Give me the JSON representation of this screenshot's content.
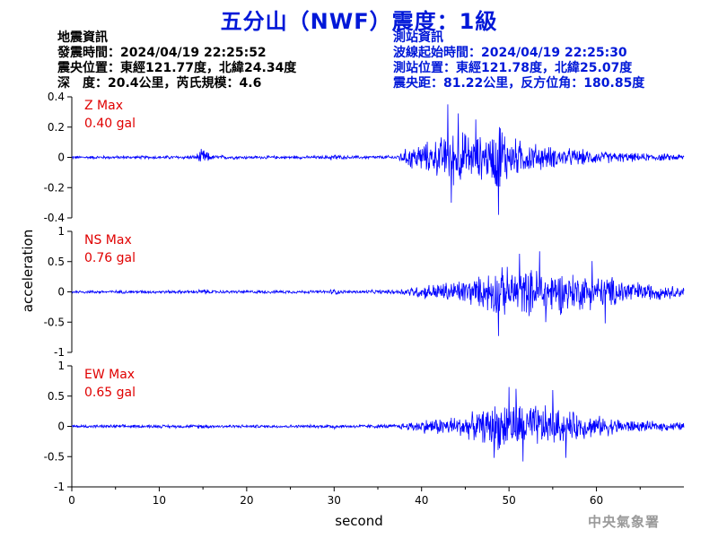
{
  "header": {
    "title": "五分山（NWF）震度：1級",
    "eq_info": {
      "heading": "地震資訊",
      "origin_time": "發震時間：2024/04/19 22:25:52",
      "epicenter": "震央位置：東經121.77度，北緯24.34度",
      "depth_magnitude": "深　度：20.4公里，芮氏規模：4.6"
    },
    "station_info": {
      "heading": "測站資訊",
      "wave_start": "波線起始時間：2024/04/19 22:25:30",
      "station_location": "測站位置：東經121.78度，北緯25.07度",
      "distance_azimuth": "震央距：81.22公里，反方位角：180.85度"
    }
  },
  "agency": "中央氣象署",
  "chart_data": {
    "type": "line",
    "xlabel": "second",
    "ylabel": "acceleration",
    "xlim": [
      0,
      70
    ],
    "xticks": [
      0,
      10,
      20,
      30,
      40,
      50,
      60
    ],
    "line_color": "#0000ff",
    "max_label_color": "#e00000",
    "panels": [
      {
        "component": "Z",
        "max_label": "Z Max",
        "max_value": "0.40 gal",
        "ylim": [
          -0.4,
          0.4
        ],
        "yticks": [
          -0.4,
          -0.2,
          0,
          0.2,
          0.4
        ],
        "ytick_labels": [
          "-0.4",
          "-0.2",
          "0",
          "0.2",
          "0.4"
        ],
        "envelope": {
          "t": [
            0,
            10,
            14,
            15,
            16,
            20,
            29,
            30,
            31,
            37,
            39,
            41,
            43,
            44,
            46,
            48,
            49,
            50,
            52,
            55,
            60,
            65,
            70
          ],
          "amp": [
            0.012,
            0.012,
            0.015,
            0.07,
            0.018,
            0.012,
            0.012,
            0.03,
            0.012,
            0.015,
            0.1,
            0.12,
            0.18,
            0.22,
            0.16,
            0.18,
            0.3,
            0.16,
            0.12,
            0.08,
            0.05,
            0.03,
            0.025
          ]
        },
        "peaks": [
          [
            43.0,
            0.35
          ],
          [
            43.4,
            -0.3
          ],
          [
            48.8,
            -0.38
          ],
          [
            48.9,
            0.2
          ],
          [
            46.2,
            0.25
          ],
          [
            44.2,
            0.29
          ]
        ]
      },
      {
        "component": "NS",
        "max_label": "NS Max",
        "max_value": "0.76 gal",
        "ylim": [
          -1,
          1
        ],
        "yticks": [
          -1,
          -0.5,
          0,
          0.5,
          1
        ],
        "ytick_labels": [
          "-1",
          "-0.5",
          "0",
          "0.5",
          "1"
        ],
        "envelope": {
          "t": [
            0,
            14,
            15,
            16,
            29,
            30,
            31,
            37,
            39,
            41,
            43,
            45,
            47,
            48,
            50,
            52,
            54,
            56,
            58,
            60,
            63,
            65,
            70
          ],
          "amp": [
            0.03,
            0.03,
            0.06,
            0.03,
            0.03,
            0.06,
            0.03,
            0.04,
            0.1,
            0.15,
            0.2,
            0.25,
            0.3,
            0.45,
            0.45,
            0.42,
            0.48,
            0.4,
            0.35,
            0.3,
            0.28,
            0.18,
            0.1
          ]
        },
        "peaks": [
          [
            48.8,
            -0.73
          ],
          [
            53.5,
            0.67
          ],
          [
            51.2,
            0.63
          ],
          [
            54.2,
            -0.5
          ],
          [
            59.5,
            0.51
          ],
          [
            61.0,
            -0.52
          ]
        ]
      },
      {
        "component": "EW",
        "max_label": "EW Max",
        "max_value": "0.65 gal",
        "ylim": [
          -1,
          1
        ],
        "yticks": [
          -1,
          -0.5,
          0,
          0.5,
          1
        ],
        "ytick_labels": [
          "-1",
          "-0.5",
          "0",
          "0.5",
          "1"
        ],
        "envelope": {
          "t": [
            0,
            14,
            15,
            16,
            29,
            30,
            31,
            37,
            39,
            41,
            43,
            45,
            47,
            48,
            50,
            52,
            54,
            56,
            58,
            60,
            63,
            65,
            70
          ],
          "amp": [
            0.03,
            0.03,
            0.05,
            0.03,
            0.03,
            0.06,
            0.03,
            0.04,
            0.1,
            0.15,
            0.18,
            0.22,
            0.3,
            0.42,
            0.48,
            0.42,
            0.4,
            0.32,
            0.25,
            0.2,
            0.14,
            0.1,
            0.08
          ]
        },
        "peaks": [
          [
            50.0,
            0.65
          ],
          [
            50.8,
            0.62
          ],
          [
            51.6,
            -0.58
          ],
          [
            48.3,
            -0.52
          ],
          [
            55.0,
            0.6
          ],
          [
            56.5,
            -0.52
          ]
        ]
      }
    ]
  }
}
